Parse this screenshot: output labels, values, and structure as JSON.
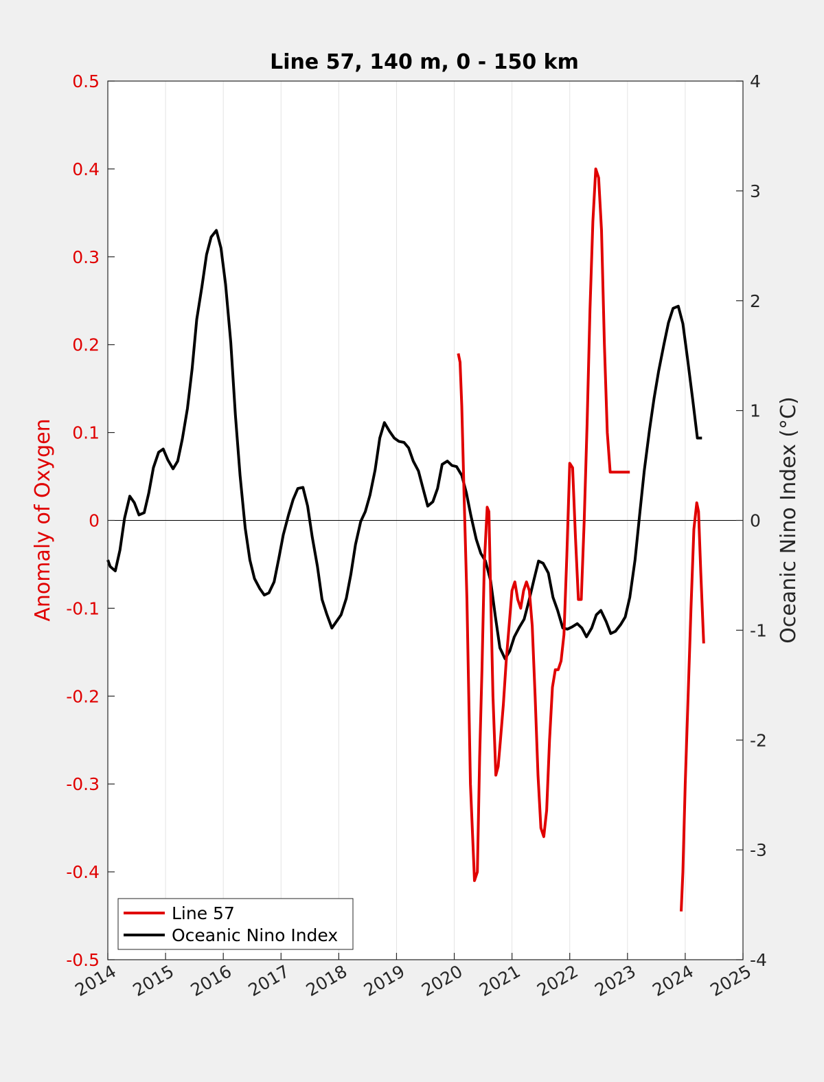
{
  "chart_data": {
    "type": "line",
    "title": "Line 57, 140 m, 0 - 150 km",
    "xlabel": "",
    "xlim": [
      2014,
      2025
    ],
    "x_ticks": [
      "2014",
      "2015",
      "2016",
      "2017",
      "2018",
      "2019",
      "2020",
      "2021",
      "2022",
      "2023",
      "2024",
      "2025"
    ],
    "grid": "vertical",
    "legend_position": "bottom-left",
    "left_axis": {
      "label": "Anomaly of Oxygen",
      "ylim": [
        -0.5,
        0.5
      ],
      "ticks": [
        "-0.5",
        "-0.4",
        "-0.3",
        "-0.2",
        "-0.1",
        "0",
        "0.1",
        "0.2",
        "0.3",
        "0.4",
        "0.5"
      ],
      "color": "#e00000"
    },
    "right_axis": {
      "label": "Oceanic Nino Index (°C)",
      "ylim": [
        -4,
        4
      ],
      "ticks": [
        "-4",
        "-3",
        "-2",
        "-1",
        "0",
        "1",
        "2",
        "3",
        "4"
      ],
      "color": "#262626"
    },
    "zero_line": true,
    "series": [
      {
        "name": "Line 57",
        "axis": "left",
        "color": "#e00000",
        "segments": [
          {
            "x": [
              2020.07,
              2020.1,
              2020.13,
              2020.17,
              2020.22,
              2020.28,
              2020.35,
              2020.4,
              2020.44,
              2020.48,
              2020.52,
              2020.57,
              2020.6,
              2020.63,
              2020.67,
              2020.72,
              2020.76,
              2020.8,
              2020.85,
              2020.9,
              2020.95,
              2021.0,
              2021.05,
              2021.1,
              2021.15,
              2021.2,
              2021.25,
              2021.3,
              2021.35,
              2021.4,
              2021.45,
              2021.5,
              2021.55,
              2021.6,
              2021.65,
              2021.7,
              2021.75,
              2021.8,
              2021.85,
              2021.9,
              2021.95,
              2022.0,
              2022.05,
              2022.1,
              2022.15,
              2022.2,
              2022.25,
              2022.3,
              2022.35,
              2022.4,
              2022.45,
              2022.5,
              2022.55,
              2022.6,
              2022.65,
              2022.7,
              2022.75,
              2022.8,
              2022.85,
              2022.9,
              2022.95,
              2023.0,
              2023.04
            ],
            "values": [
              0.19,
              0.18,
              0.13,
              0.03,
              -0.09,
              -0.3,
              -0.41,
              -0.4,
              -0.27,
              -0.17,
              -0.05,
              0.015,
              0.01,
              -0.08,
              -0.2,
              -0.29,
              -0.28,
              -0.25,
              -0.21,
              -0.16,
              -0.12,
              -0.08,
              -0.07,
              -0.09,
              -0.1,
              -0.08,
              -0.07,
              -0.08,
              -0.12,
              -0.2,
              -0.29,
              -0.35,
              -0.36,
              -0.33,
              -0.25,
              -0.19,
              -0.17,
              -0.17,
              -0.16,
              -0.13,
              -0.04,
              0.065,
              0.06,
              -0.02,
              -0.09,
              -0.09,
              0.0,
              0.11,
              0.24,
              0.34,
              0.4,
              0.39,
              0.33,
              0.2,
              0.1,
              0.055,
              0.055,
              0.055,
              0.055,
              0.055,
              0.055,
              0.055,
              0.055
            ]
          },
          {
            "x": [
              2023.93,
              2023.96,
              2024.0,
              2024.05,
              2024.1,
              2024.15,
              2024.2,
              2024.23,
              2024.27,
              2024.32
            ],
            "values": [
              -0.445,
              -0.4,
              -0.3,
              -0.2,
              -0.1,
              -0.01,
              0.02,
              0.01,
              -0.06,
              -0.14
            ]
          }
        ]
      },
      {
        "name": "Oceanic Nino Index",
        "axis": "right",
        "color": "#000000",
        "segments": [
          {
            "x": [
              2014.0,
              2014.04,
              2014.13,
              2014.21,
              2014.29,
              2014.38,
              2014.46,
              2014.54,
              2014.63,
              2014.71,
              2014.79,
              2014.88,
              2014.96,
              2015.04,
              2015.13,
              2015.21,
              2015.29,
              2015.38,
              2015.46,
              2015.54,
              2015.63,
              2015.71,
              2015.79,
              2015.88,
              2015.96,
              2016.04,
              2016.13,
              2016.21,
              2016.29,
              2016.38,
              2016.46,
              2016.54,
              2016.63,
              2016.71,
              2016.79,
              2016.88,
              2016.96,
              2017.04,
              2017.13,
              2017.21,
              2017.29,
              2017.38,
              2017.46,
              2017.54,
              2017.63,
              2017.71,
              2017.79,
              2017.88,
              2017.96,
              2018.04,
              2018.13,
              2018.21,
              2018.29,
              2018.38,
              2018.46,
              2018.54,
              2018.63,
              2018.71,
              2018.79,
              2018.88,
              2018.96,
              2019.04,
              2019.13,
              2019.21,
              2019.29,
              2019.38,
              2019.46,
              2019.54,
              2019.63,
              2019.71,
              2019.79,
              2019.88,
              2019.96,
              2020.04,
              2020.13,
              2020.21,
              2020.29,
              2020.38,
              2020.46,
              2020.54,
              2020.63,
              2020.71,
              2020.79,
              2020.88,
              2020.96,
              2021.04,
              2021.13,
              2021.21,
              2021.29,
              2021.38,
              2021.46,
              2021.54,
              2021.63,
              2021.71,
              2021.79,
              2021.88,
              2021.96,
              2022.04,
              2022.13,
              2022.21,
              2022.29,
              2022.38,
              2022.46,
              2022.54,
              2022.63,
              2022.71,
              2022.79,
              2022.88,
              2022.96,
              2023.04,
              2023.13,
              2023.21,
              2023.29,
              2023.38,
              2023.46,
              2023.54,
              2023.63,
              2023.71,
              2023.79,
              2023.88,
              2023.96,
              2024.04,
              2024.13,
              2024.21,
              2024.29
            ],
            "values": [
              -0.36,
              -0.42,
              -0.46,
              -0.27,
              0.02,
              0.22,
              0.16,
              0.05,
              0.07,
              0.25,
              0.48,
              0.62,
              0.65,
              0.55,
              0.47,
              0.54,
              0.74,
              1.02,
              1.38,
              1.83,
              2.13,
              2.42,
              2.58,
              2.64,
              2.48,
              2.15,
              1.62,
              0.96,
              0.41,
              -0.07,
              -0.36,
              -0.53,
              -0.62,
              -0.68,
              -0.66,
              -0.56,
              -0.35,
              -0.13,
              0.05,
              0.19,
              0.29,
              0.3,
              0.13,
              -0.15,
              -0.42,
              -0.72,
              -0.85,
              -0.98,
              -0.92,
              -0.86,
              -0.71,
              -0.49,
              -0.22,
              -0.01,
              0.08,
              0.23,
              0.46,
              0.75,
              0.89,
              0.81,
              0.75,
              0.72,
              0.71,
              0.66,
              0.54,
              0.45,
              0.29,
              0.13,
              0.17,
              0.29,
              0.51,
              0.54,
              0.5,
              0.49,
              0.41,
              0.25,
              0.04,
              -0.17,
              -0.3,
              -0.37,
              -0.55,
              -0.87,
              -1.16,
              -1.26,
              -1.19,
              -1.06,
              -0.97,
              -0.9,
              -0.74,
              -0.54,
              -0.37,
              -0.39,
              -0.48,
              -0.7,
              -0.82,
              -0.98,
              -0.99,
              -0.97,
              -0.94,
              -0.98,
              -1.06,
              -0.98,
              -0.86,
              -0.82,
              -0.92,
              -1.03,
              -1.01,
              -0.95,
              -0.88,
              -0.7,
              -0.36,
              0.05,
              0.45,
              0.82,
              1.11,
              1.36,
              1.6,
              1.8,
              1.93,
              1.95,
              1.79,
              1.47,
              1.1,
              0.75,
              0.75
            ]
          }
        ]
      }
    ]
  }
}
